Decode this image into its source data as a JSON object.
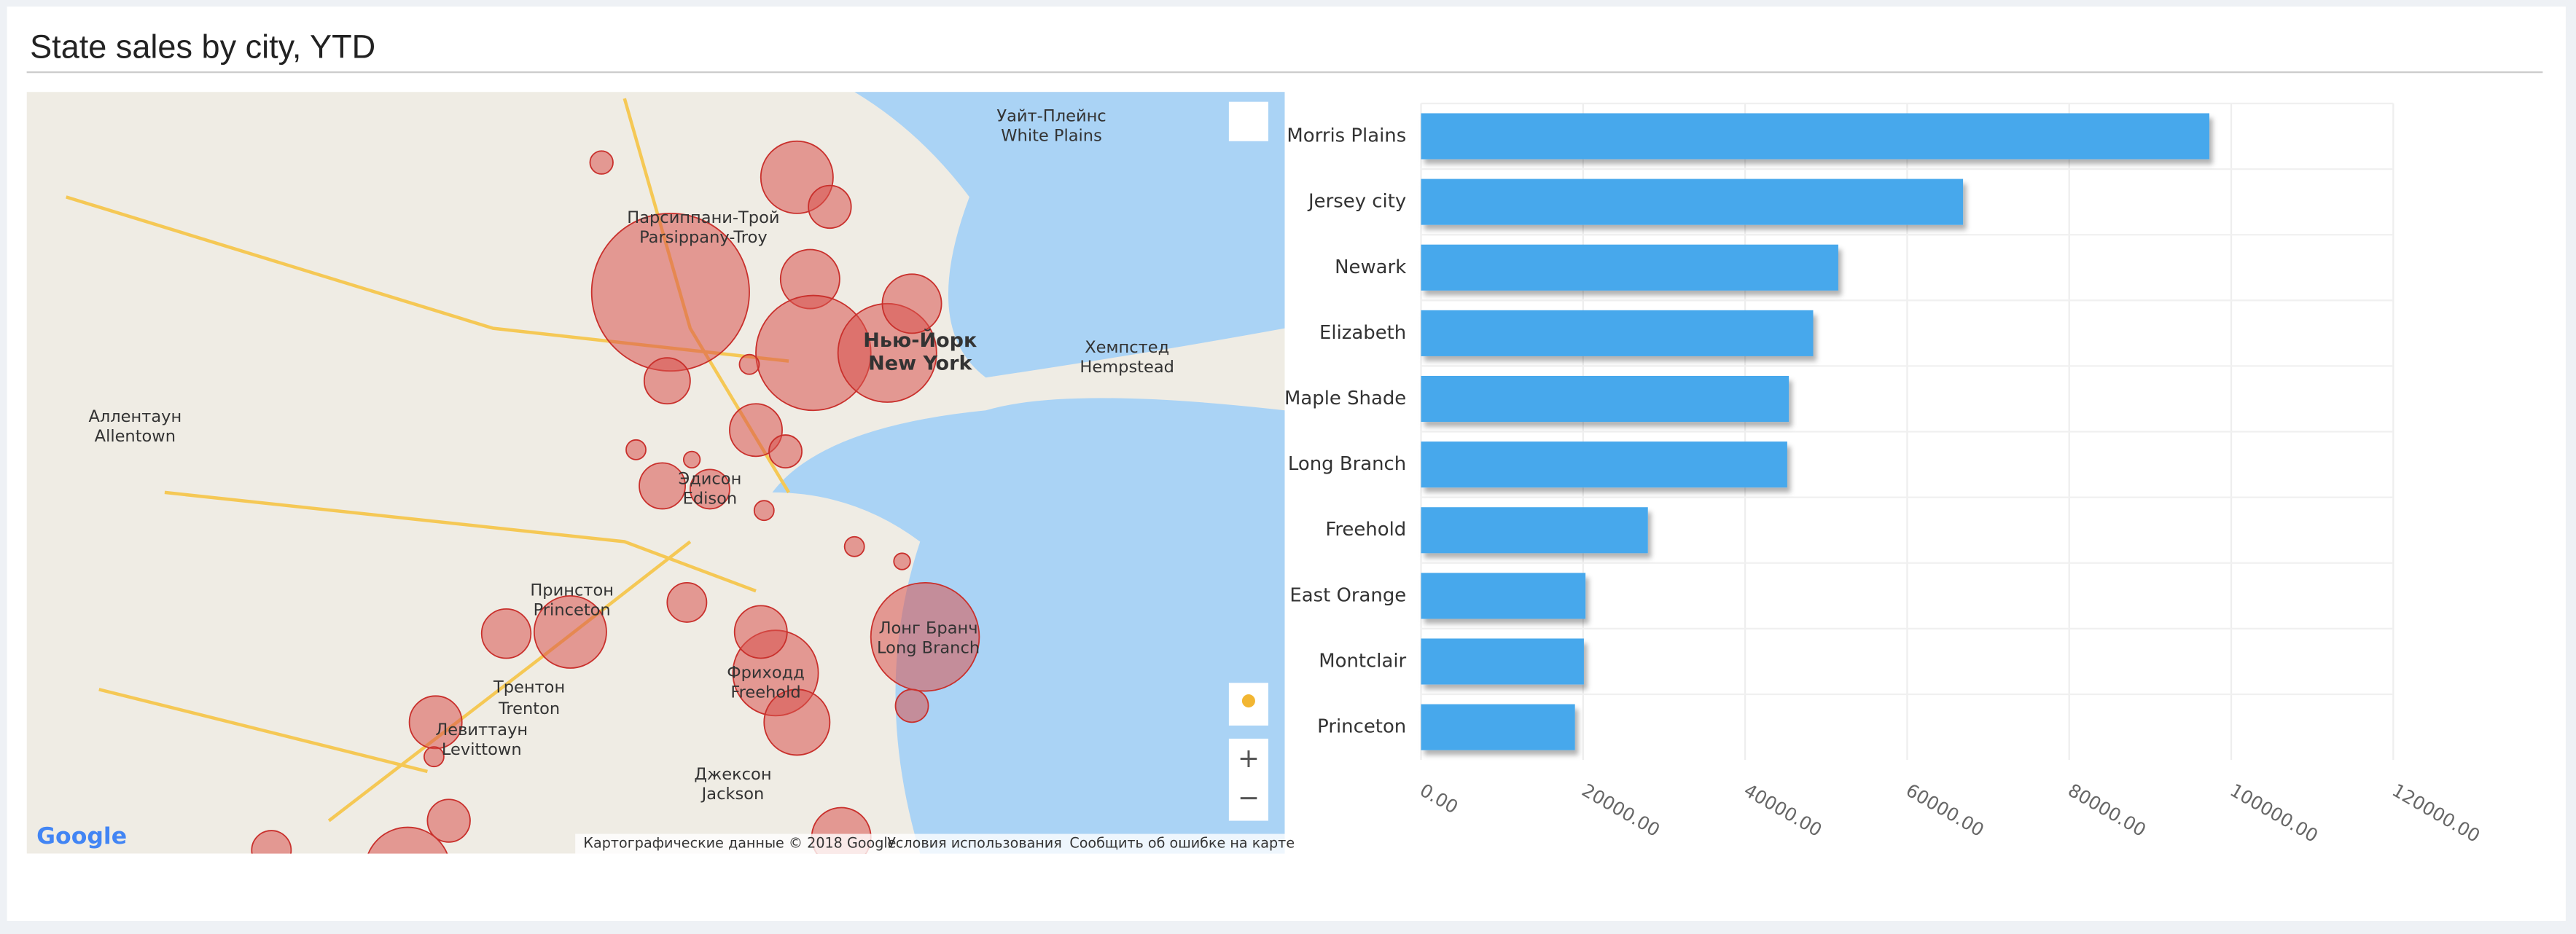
{
  "title": "State sales by city, YTD",
  "map": {
    "labels": [
      "Нью-Йорк",
      "New York",
      "Аллентаун",
      "Allentown",
      "Трентон",
      "Trenton",
      "Эдисон",
      "Edison",
      "Принстон",
      "Princeton",
      "Лонг Бранч",
      "Long Branch",
      "Парсиппани-Трой",
      "Parsippany-Troy",
      "Хемпстед",
      "Hempstead",
      "Уайт-Плейнс",
      "White Plains",
      "Фриходд",
      "Freehold",
      "Левиттаун",
      "Levittown",
      "Джексон",
      "Jackson"
    ],
    "attribution": [
      "Картографические данные © 2018 Google",
      "Условия использования",
      "Сообщить об ошибке на карте"
    ],
    "logo": "Google",
    "zoom_in": "+",
    "zoom_out": "−"
  },
  "chart_data": {
    "type": "bar",
    "orientation": "horizontal",
    "categories": [
      "Morris Plains",
      "Jersey city",
      "Newark",
      "Elizabeth",
      "Maple Shade",
      "Long Branch",
      "Freehold",
      "East Orange",
      "Montclair",
      "Princeton"
    ],
    "values": [
      97300,
      66900,
      51500,
      48400,
      45400,
      45200,
      28000,
      20300,
      20100,
      19000
    ],
    "color": "#47a8ec",
    "xlim": [
      0,
      120000
    ],
    "xticks": [
      {
        "value": 0,
        "label": "0.00"
      },
      {
        "value": 20000,
        "label": "20000.00"
      },
      {
        "value": 40000,
        "label": "40000.00"
      },
      {
        "value": 60000,
        "label": "60000.00"
      },
      {
        "value": 80000,
        "label": "80000.00"
      },
      {
        "value": 100000,
        "label": "100000.00"
      },
      {
        "value": 120000,
        "label": "120000.00"
      }
    ],
    "grid": true
  }
}
